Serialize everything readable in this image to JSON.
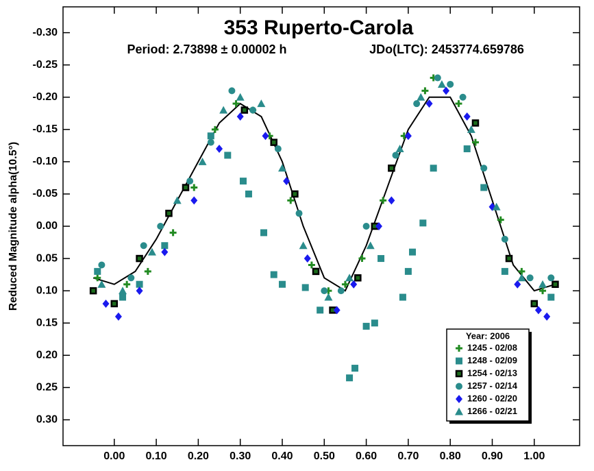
{
  "chart_data": {
    "type": "scatter",
    "title": "353 Ruperto-Carola",
    "annotations": [
      "Period: 2.73898 ± 0.00002 h",
      "JDo(LTC): 2453774.659786"
    ],
    "y_label": "Reduced Magnitude alpha(10.5°)",
    "xlim": [
      -0.122,
      1.108
    ],
    "ylim": [
      -0.34,
      0.34
    ],
    "y_inverted": true,
    "xticks": [
      {
        "value": 0,
        "label": "0.00"
      },
      {
        "value": 0.1,
        "label": "0.10"
      },
      {
        "value": 0.2,
        "label": "0.20"
      },
      {
        "value": 0.3,
        "label": "0.30"
      },
      {
        "value": 0.4,
        "label": "0.40"
      },
      {
        "value": 0.5,
        "label": "0.50"
      },
      {
        "value": 0.6,
        "label": "0.60"
      },
      {
        "value": 0.7,
        "label": "0.70"
      },
      {
        "value": 0.8,
        "label": "0.80"
      },
      {
        "value": 0.9,
        "label": "0.90"
      },
      {
        "value": 1,
        "label": "1.00"
      }
    ],
    "yticks": [
      {
        "value": -0.3,
        "label": "-0.30"
      },
      {
        "value": -0.25,
        "label": "-0.25"
      },
      {
        "value": -0.2,
        "label": "-0.20"
      },
      {
        "value": -0.15,
        "label": "-0.15"
      },
      {
        "value": -0.1,
        "label": "-0.10"
      },
      {
        "value": -0.05,
        "label": "-0.05"
      },
      {
        "value": 0,
        "label": "0.00"
      },
      {
        "value": 0.05,
        "label": "0.05"
      },
      {
        "value": 0.1,
        "label": "0.10"
      },
      {
        "value": 0.15,
        "label": "0.15"
      },
      {
        "value": 0.2,
        "label": "0.20"
      },
      {
        "value": 0.25,
        "label": "0.25"
      },
      {
        "value": 0.3,
        "label": "0.30"
      }
    ],
    "legend_title": "Year: 2006",
    "legend_position": "lower right",
    "fit_curve": {
      "color": "#000000",
      "x": [
        -0.05,
        0,
        0.05,
        0.1,
        0.15,
        0.2,
        0.25,
        0.3,
        0.35,
        0.4,
        0.45,
        0.5,
        0.55,
        0.6,
        0.65,
        0.7,
        0.75,
        0.8,
        0.85,
        0.9,
        0.95,
        1,
        1.05
      ],
      "values": [
        0.08,
        0.09,
        0.07,
        0.02,
        -0.04,
        -0.1,
        -0.16,
        -0.19,
        -0.17,
        -0.1,
        0,
        0.08,
        0.1,
        0.03,
        -0.06,
        -0.15,
        -0.2,
        -0.2,
        -0.14,
        -0.04,
        0.06,
        0.1,
        0.09
      ]
    },
    "series": [
      {
        "name": "1245 - 02/08",
        "marker": "plus",
        "color": "#228b22",
        "x": [
          -0.04,
          0.03,
          0.08,
          0.14,
          0.19,
          0.24,
          0.29,
          0.33,
          0.37,
          0.42,
          0.47,
          0.51,
          0.55,
          0.59,
          0.64,
          0.69,
          0.74,
          0.76,
          0.82,
          0.86,
          0.92,
          0.97,
          1.02
        ],
        "values": [
          0.08,
          0.09,
          0.07,
          0.01,
          -0.06,
          -0.15,
          -0.19,
          -0.18,
          -0.14,
          -0.04,
          0.06,
          0.1,
          0.09,
          0.05,
          -0.04,
          -0.14,
          -0.21,
          -0.23,
          -0.19,
          -0.13,
          -0.01,
          0.07,
          0.1
        ]
      },
      {
        "name": "1248 - 02/09",
        "marker": "square",
        "color": "#2a8c8c",
        "x": [
          -0.04,
          0.02,
          0.06,
          0.12,
          0.17,
          0.23,
          0.27,
          0.307,
          0.32,
          0.356,
          0.38,
          0.4,
          0.455,
          0.49,
          0.56,
          0.573,
          0.6,
          0.62,
          0.635,
          0.687,
          0.7,
          0.71,
          0.735,
          0.76,
          0.84,
          0.88,
          0.93,
          1.04
        ],
        "values": [
          0.07,
          0.11,
          0.09,
          0.03,
          -0.06,
          -0.14,
          -0.11,
          -0.07,
          -0.05,
          0.01,
          0.075,
          0.09,
          0.095,
          0.13,
          0.235,
          0.22,
          0.155,
          0.15,
          0.05,
          0.11,
          0.07,
          0.04,
          -0.005,
          -0.09,
          -0.12,
          -0.06,
          0.07,
          0.11
        ]
      },
      {
        "name": "1254 - 02/13",
        "marker": "square-outlined",
        "color": "#1c6b1c",
        "x": [
          -0.05,
          0.0,
          0.06,
          0.13,
          0.17,
          0.31,
          0.38,
          0.43,
          0.48,
          0.52,
          0.58,
          0.62,
          0.66,
          0.86,
          0.94,
          1.0,
          1.05
        ],
        "values": [
          0.1,
          0.12,
          0.05,
          -0.02,
          -0.06,
          -0.18,
          -0.13,
          -0.05,
          0.07,
          0.13,
          0.08,
          0.0,
          -0.09,
          -0.16,
          0.05,
          0.12,
          0.09
        ]
      },
      {
        "name": "1257 - 02/14",
        "marker": "circle",
        "color": "#2a8c8c",
        "x": [
          -0.03,
          0.04,
          0.07,
          0.11,
          0.18,
          0.23,
          0.28,
          0.33,
          0.39,
          0.44,
          0.5,
          0.54,
          0.6,
          0.67,
          0.72,
          0.77,
          0.8,
          0.83,
          0.88,
          0.93,
          0.99,
          1.04
        ],
        "values": [
          0.06,
          0.08,
          0.03,
          0.0,
          -0.07,
          -0.13,
          -0.21,
          -0.18,
          -0.12,
          -0.02,
          0.1,
          0.1,
          0.0,
          -0.11,
          -0.19,
          -0.23,
          -0.22,
          -0.2,
          -0.09,
          0.02,
          0.08,
          0.08
        ]
      },
      {
        "name": "1260 - 02/20",
        "marker": "diamond",
        "color": "#1a1aee",
        "x": [
          -0.02,
          0.01,
          0.06,
          0.12,
          0.19,
          0.25,
          0.3,
          0.36,
          0.41,
          0.46,
          0.53,
          0.57,
          0.63,
          0.66,
          0.7,
          0.75,
          0.79,
          0.84,
          0.9,
          0.96,
          1.01,
          1.03
        ],
        "values": [
          0.12,
          0.14,
          0.1,
          0.04,
          -0.04,
          -0.12,
          -0.17,
          -0.14,
          -0.07,
          0.05,
          0.13,
          0.09,
          0.0,
          -0.04,
          -0.14,
          -0.19,
          -0.21,
          -0.17,
          -0.03,
          0.09,
          0.13,
          0.14
        ]
      },
      {
        "name": "1266 - 02/21",
        "marker": "triangle",
        "color": "#2a8c8c",
        "x": [
          -0.03,
          0.02,
          0.09,
          0.15,
          0.21,
          0.26,
          0.3,
          0.35,
          0.4,
          0.45,
          0.51,
          0.56,
          0.61,
          0.68,
          0.73,
          0.78,
          0.85,
          0.91,
          0.97,
          1.02
        ],
        "values": [
          0.09,
          0.1,
          0.04,
          -0.04,
          -0.1,
          -0.18,
          -0.2,
          -0.19,
          -0.09,
          0.03,
          0.11,
          0.08,
          0.03,
          -0.12,
          -0.2,
          -0.22,
          -0.15,
          -0.03,
          0.08,
          0.09
        ]
      }
    ]
  }
}
